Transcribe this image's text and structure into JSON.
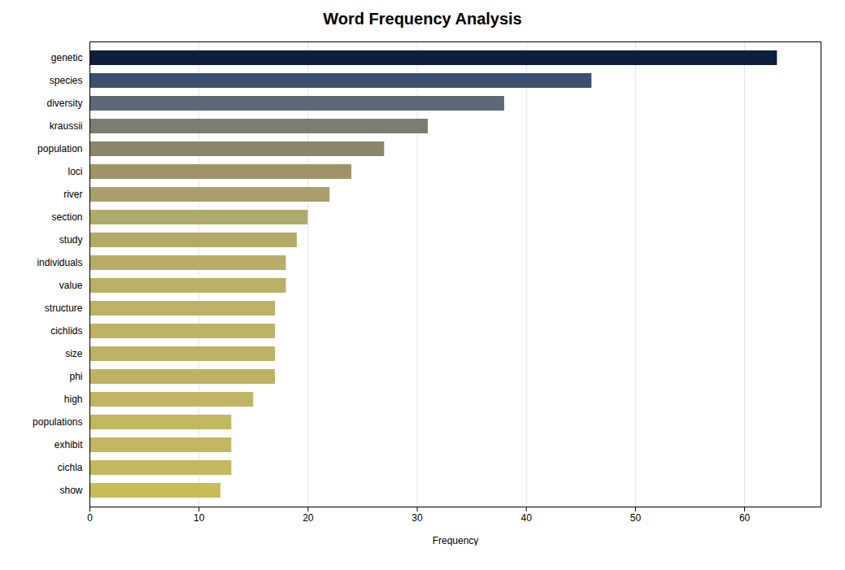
{
  "chart_data": {
    "type": "bar",
    "orientation": "horizontal",
    "title": "Word Frequency Analysis",
    "xlabel": "Frequency",
    "categories": [
      "genetic",
      "species",
      "diversity",
      "kraussii",
      "population",
      "loci",
      "river",
      "section",
      "study",
      "individuals",
      "value",
      "structure",
      "cichlids",
      "size",
      "phi",
      "high",
      "populations",
      "exhibit",
      "cichla",
      "show"
    ],
    "values": [
      63,
      46,
      38,
      31,
      27,
      24,
      22,
      20,
      19,
      18,
      18,
      17,
      17,
      17,
      17,
      15,
      13,
      13,
      13,
      12
    ],
    "colors": [
      "#0d1f3c",
      "#3d4f6e",
      "#5d6878",
      "#7a7d72",
      "#8a876a",
      "#9c9468",
      "#a8a06a",
      "#aeaa6a",
      "#b2aa68",
      "#b8ad68",
      "#bcb068",
      "#bcb265",
      "#beb265",
      "#beb265",
      "#beb265",
      "#c0b462",
      "#c2b65e",
      "#c2b65e",
      "#c4b85e",
      "#c8bc58"
    ],
    "xlim": [
      0,
      67
    ],
    "xticks": [
      0,
      10,
      20,
      30,
      40,
      50,
      60
    ],
    "grid": true
  }
}
